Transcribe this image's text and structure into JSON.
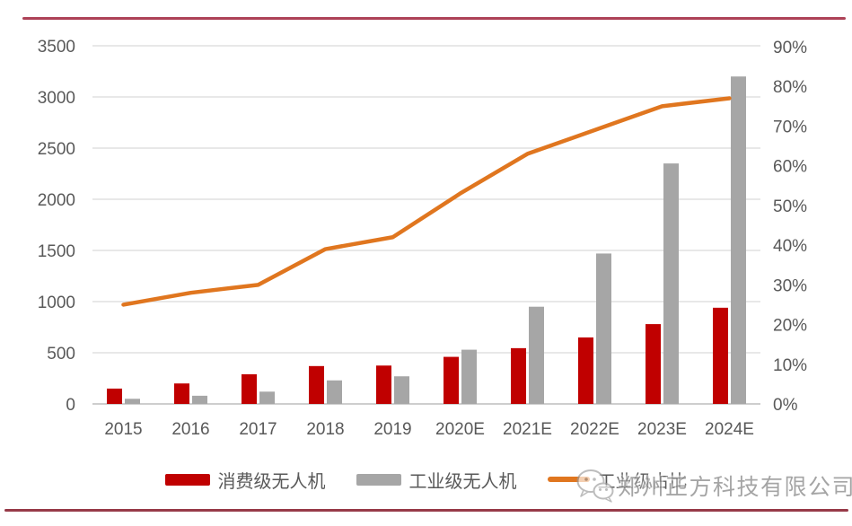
{
  "watermark": {
    "text": "郑州正方科技有限公司",
    "icon": "wechat-icon"
  },
  "rules": {
    "top_color": "#ad4257",
    "bottom_color": "#973a48"
  },
  "colors": {
    "consumer_bar": "#c00000",
    "industrial_bar": "#a6a6a6",
    "share_line": "#e0761f",
    "gridline": "#d9d9d9",
    "baseline": "#bdbdbd",
    "tick_text": "#595959"
  },
  "chart_data": {
    "type": "combo",
    "subtype": "grouped-bars-plus-line",
    "categories": [
      "2015",
      "2016",
      "2017",
      "2018",
      "2019",
      "2020E",
      "2021E",
      "2022E",
      "2023E",
      "2024E"
    ],
    "series": [
      {
        "id": "consumer",
        "name": "消费级无人机",
        "type": "bar",
        "axis": "left",
        "color": "#c00000",
        "values": [
          150,
          200,
          290,
          370,
          375,
          460,
          545,
          650,
          780,
          940
        ]
      },
      {
        "id": "industrial",
        "name": "工业级无人机",
        "type": "bar",
        "axis": "left",
        "color": "#a6a6a6",
        "values": [
          50,
          80,
          120,
          230,
          270,
          530,
          950,
          1470,
          2350,
          3200
        ]
      },
      {
        "id": "share",
        "name": "工业级占比",
        "type": "line",
        "axis": "right",
        "color": "#e0761f",
        "values": [
          25,
          28,
          30,
          39,
          42,
          53,
          63,
          69,
          75,
          77
        ]
      }
    ],
    "left_axis": {
      "min": 0,
      "max": 3500,
      "step": 500,
      "ticks": [
        "0",
        "500",
        "1000",
        "1500",
        "2000",
        "2500",
        "3000",
        "3500"
      ]
    },
    "right_axis": {
      "min": 0,
      "max": 90,
      "step": 10,
      "unit": "%",
      "ticks": [
        "0%",
        "10%",
        "20%",
        "30%",
        "40%",
        "50%",
        "60%",
        "70%",
        "80%",
        "90%"
      ]
    },
    "grid": true,
    "legend_position": "bottom",
    "title": ""
  }
}
